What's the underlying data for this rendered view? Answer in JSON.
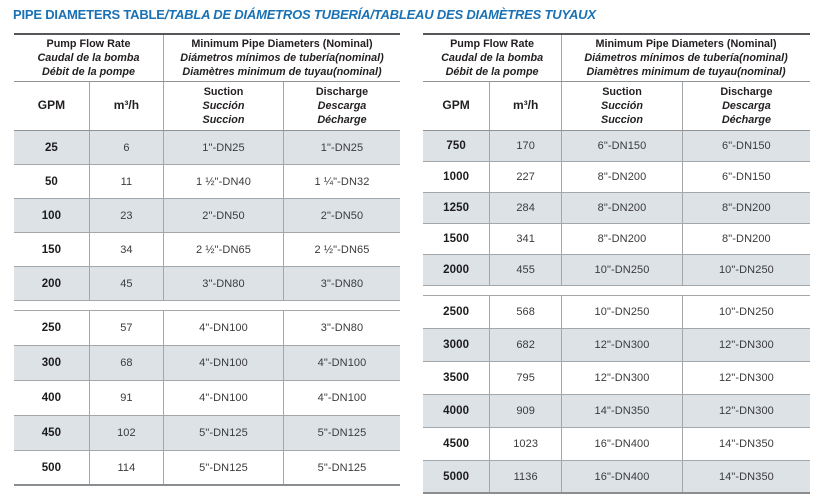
{
  "page_title": {
    "main": "PIPE DIAMETERS TABLE",
    "translations": "/TABLA DE DIÁMETROS TUBERÍA/TABLEAU DES DIAMÈTRES TUYAUX"
  },
  "colors": {
    "title_blue": "#1a72b4",
    "row_shade": "#dde2e6",
    "grid_line": "#a4a7a9",
    "table_top_border": "#55575a",
    "header_text": "#231f20"
  },
  "table_header": {
    "pump_flow_rate": [
      "Pump Flow Rate",
      "Caudal de la bomba",
      "Débit de la pompe"
    ],
    "min_pipe_diameters": [
      "Minimum Pipe Diameters (Nominal)",
      "Diámetros mínimos de tubería(nominal)",
      "Diamètres minimum de tuyau(nominal)"
    ],
    "gpm": "GPM",
    "m3h": "m³/h",
    "suction": [
      "Suction",
      "Succión",
      "Succion"
    ],
    "discharge": [
      "Discharge",
      "Descarga",
      "Décharge"
    ]
  },
  "left_table": {
    "groups": [
      {
        "rows": [
          {
            "gpm": "25",
            "m3h": "6",
            "suction": "1\"-DN25",
            "discharge": "1\"-DN25",
            "shaded": true
          },
          {
            "gpm": "50",
            "m3h": "11",
            "suction": "1 ½\"-DN40",
            "discharge": "1 ¼\"-DN32",
            "shaded": false
          },
          {
            "gpm": "100",
            "m3h": "23",
            "suction": "2\"-DN50",
            "discharge": "2\"-DN50",
            "shaded": true
          },
          {
            "gpm": "150",
            "m3h": "34",
            "suction": "2 ½\"-DN65",
            "discharge": "2 ½\"-DN65",
            "shaded": false
          },
          {
            "gpm": "200",
            "m3h": "45",
            "suction": "3\"-DN80",
            "discharge": "3\"-DN80",
            "shaded": true
          }
        ]
      },
      {
        "rows": [
          {
            "gpm": "250",
            "m3h": "57",
            "suction": "4\"-DN100",
            "discharge": "3\"-DN80",
            "shaded": false
          },
          {
            "gpm": "300",
            "m3h": "68",
            "suction": "4\"-DN100",
            "discharge": "4\"-DN100",
            "shaded": true
          },
          {
            "gpm": "400",
            "m3h": "91",
            "suction": "4\"-DN100",
            "discharge": "4\"-DN100",
            "shaded": false
          },
          {
            "gpm": "450",
            "m3h": "102",
            "suction": "5\"-DN125",
            "discharge": "5\"-DN125",
            "shaded": true
          },
          {
            "gpm": "500",
            "m3h": "114",
            "suction": "5\"-DN125",
            "discharge": "5\"-DN125",
            "shaded": false
          }
        ]
      }
    ]
  },
  "right_table": {
    "groups": [
      {
        "rows": [
          {
            "gpm": "750",
            "m3h": "170",
            "suction": "6\"-DN150",
            "discharge": "6\"-DN150",
            "shaded": true
          },
          {
            "gpm": "1000",
            "m3h": "227",
            "suction": "8\"-DN200",
            "discharge": "6\"-DN150",
            "shaded": false
          },
          {
            "gpm": "1250",
            "m3h": "284",
            "suction": "8\"-DN200",
            "discharge": "8\"-DN200",
            "shaded": true
          },
          {
            "gpm": "1500",
            "m3h": "341",
            "suction": "8\"-DN200",
            "discharge": "8\"-DN200",
            "shaded": false
          },
          {
            "gpm": "2000",
            "m3h": "455",
            "suction": "10\"-DN250",
            "discharge": "10\"-DN250",
            "shaded": true
          }
        ]
      },
      {
        "rows": [
          {
            "gpm": "2500",
            "m3h": "568",
            "suction": "10\"-DN250",
            "discharge": "10\"-DN250",
            "shaded": false
          },
          {
            "gpm": "3000",
            "m3h": "682",
            "suction": "12\"-DN300",
            "discharge": "12\"-DN300",
            "shaded": true
          },
          {
            "gpm": "3500",
            "m3h": "795",
            "suction": "12\"-DN300",
            "discharge": "12\"-DN300",
            "shaded": false
          },
          {
            "gpm": "4000",
            "m3h": "909",
            "suction": "14\"-DN350",
            "discharge": "12\"-DN300",
            "shaded": true
          },
          {
            "gpm": "4500",
            "m3h": "1023",
            "suction": "16\"-DN400",
            "discharge": "14\"-DN350",
            "shaded": false
          },
          {
            "gpm": "5000",
            "m3h": "1136",
            "suction": "16\"-DN400",
            "discharge": "14\"-DN350",
            "shaded": true
          }
        ]
      }
    ]
  }
}
